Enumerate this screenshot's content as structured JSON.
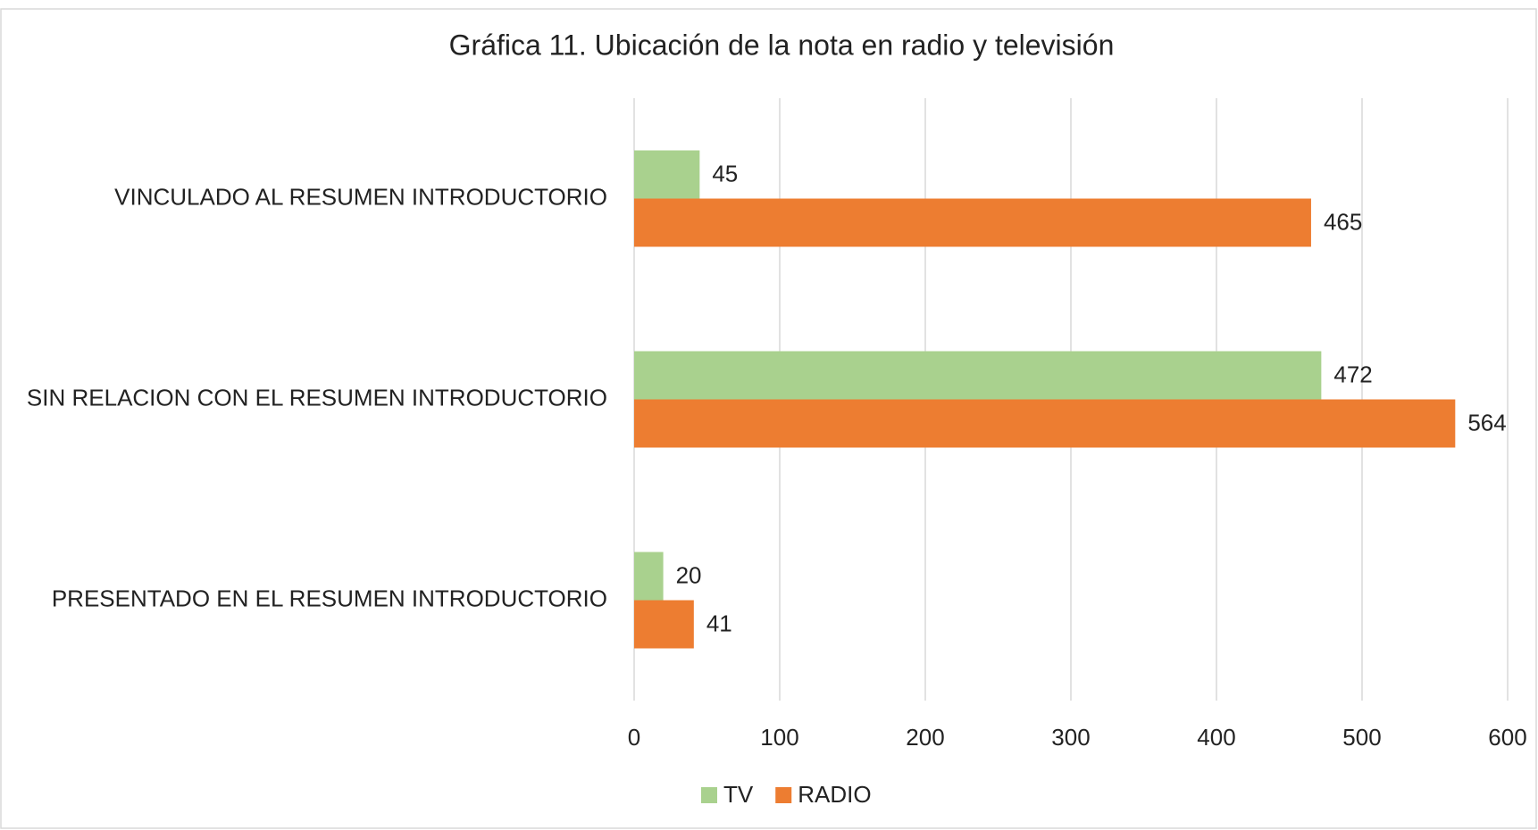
{
  "chart_data": {
    "type": "hbar",
    "title": "Gráfica 11. Ubicación de la nota en radio y televisión",
    "categories": [
      "VINCULADO AL RESUMEN INTRODUCTORIO",
      "SIN RELACION CON EL RESUMEN INTRODUCTORIO",
      "PRESENTADO EN EL RESUMEN INTRODUCTORIO"
    ],
    "series": [
      {
        "name": "TV",
        "color": "#a9d18e",
        "values": [
          45,
          472,
          20
        ]
      },
      {
        "name": "RADIO",
        "color": "#ed7d31",
        "values": [
          465,
          564,
          41
        ]
      }
    ],
    "xlim": [
      0,
      600
    ],
    "xticks": [
      0,
      100,
      200,
      300,
      400,
      500,
      600
    ],
    "grid": true,
    "legend": "bottom"
  }
}
